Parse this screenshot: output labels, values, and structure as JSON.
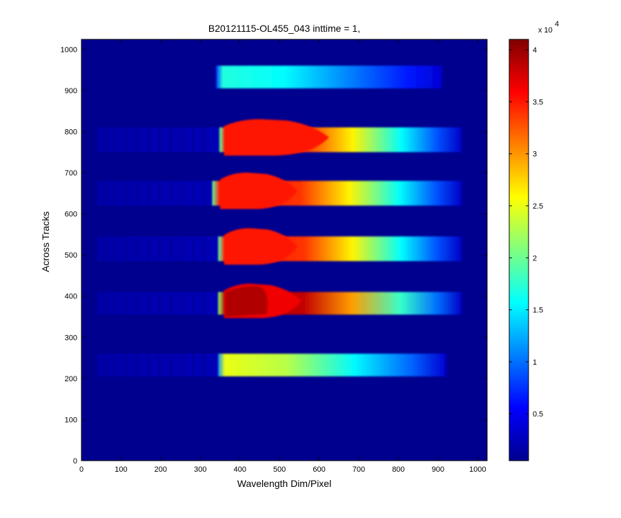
{
  "chart_data": {
    "type": "heatmap",
    "title": "B20121115-OL455_043 inttime = 1,",
    "xlabel": "Wavelength Dim/Pixel",
    "ylabel": "Across Tracks",
    "xlim": [
      0,
      1024
    ],
    "ylim": [
      0,
      1024
    ],
    "x_ticks": [
      "0",
      "100",
      "200",
      "300",
      "400",
      "500",
      "600",
      "700",
      "800",
      "900",
      "1000"
    ],
    "y_ticks": [
      "0",
      "100",
      "200",
      "300",
      "400",
      "500",
      "600",
      "700",
      "800",
      "900",
      "1000"
    ],
    "colorbar": {
      "colormap": "jet",
      "range": [
        500,
        41000
      ],
      "ticks": [
        "0.5",
        "1",
        "1.5",
        "2",
        "2.5",
        "3",
        "3.5",
        "4"
      ],
      "exponent_label": "x 10",
      "exponent": "4"
    },
    "background_value": 800,
    "bands": [
      {
        "y_range": [
          905,
          960
        ],
        "x_range": [
          340,
          910
        ],
        "peak": 17000,
        "saturated": false,
        "faint_start": null
      },
      {
        "y_range": [
          750,
          810
        ],
        "x_range": [
          348,
          960
        ],
        "peak": 35000,
        "saturated": true,
        "saturated_x_range": [
          360,
          625
        ],
        "faint_start": 40
      },
      {
        "y_range": [
          620,
          680
        ],
        "x_range": [
          330,
          960
        ],
        "peak": 35000,
        "saturated": true,
        "saturated_x_range": [
          350,
          545
        ],
        "faint_start": 40
      },
      {
        "y_range": [
          485,
          545
        ],
        "x_range": [
          345,
          960
        ],
        "peak": 35000,
        "saturated": true,
        "saturated_x_range": [
          360,
          545
        ],
        "faint_start": 40
      },
      {
        "y_range": [
          355,
          410
        ],
        "x_range": [
          345,
          960
        ],
        "peak": 39500,
        "saturated": true,
        "saturated_x_range": [
          360,
          555
        ],
        "faint_start": 40
      },
      {
        "y_range": [
          205,
          260
        ],
        "x_range": [
          345,
          920
        ],
        "peak": 25000,
        "saturated": false,
        "faint_start": 40
      }
    ]
  }
}
